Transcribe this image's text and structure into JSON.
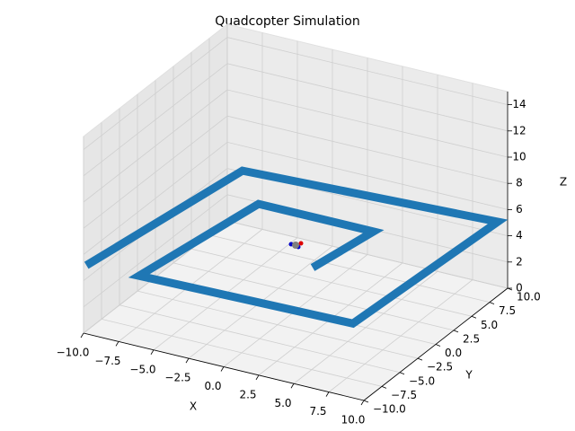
{
  "chart_data": {
    "type": "line3d",
    "title": "Quadcopter Simulation",
    "xlabel": "X",
    "ylabel": "Y",
    "zlabel": "Z",
    "xlim": [
      -10,
      10
    ],
    "ylim": [
      -10,
      10
    ],
    "zlim": [
      0,
      15
    ],
    "xticks": [
      {
        "value": -10,
        "label": "−10.0"
      },
      {
        "value": -7.5,
        "label": "−7.5"
      },
      {
        "value": -5,
        "label": "−5.0"
      },
      {
        "value": -2.5,
        "label": "−2.5"
      },
      {
        "value": 0,
        "label": "0.0"
      },
      2.5,
      {
        "value": 5,
        "label": "5.0"
      },
      7.5,
      {
        "value": 10,
        "label": "10.0"
      }
    ],
    "yticks": [
      {
        "value": -10,
        "label": "−10.0"
      },
      {
        "value": -7.5,
        "label": "−7.5"
      },
      {
        "value": -5,
        "label": "−5.0"
      },
      {
        "value": -2.5,
        "label": "−2.5"
      },
      {
        "value": 0,
        "label": "0.0"
      },
      2.5,
      {
        "value": 5,
        "label": "5.0"
      },
      7.5,
      {
        "value": 10,
        "label": "10.0"
      }
    ],
    "zticks": [
      0,
      2,
      4,
      6,
      8,
      10,
      12,
      14
    ],
    "grid": true,
    "series": [
      {
        "color": "#1f77b4",
        "x": [
          2.5,
          3.3,
          -4.9,
          -6.4,
          8.6,
          9.4,
          -8.1,
          -10
        ],
        "y": [
          -2.5,
          4.4,
          4.4,
          -9.3,
          -8.8,
          9.8,
          8.4,
          -9.6
        ],
        "z": [
          5,
          5,
          5,
          5,
          5,
          5,
          5,
          5
        ]
      },
      {
        "color": "#7f7f7f",
        "x": [
          0
        ],
        "y": [
          0
        ],
        "z": [
          5
        ]
      }
    ]
  }
}
